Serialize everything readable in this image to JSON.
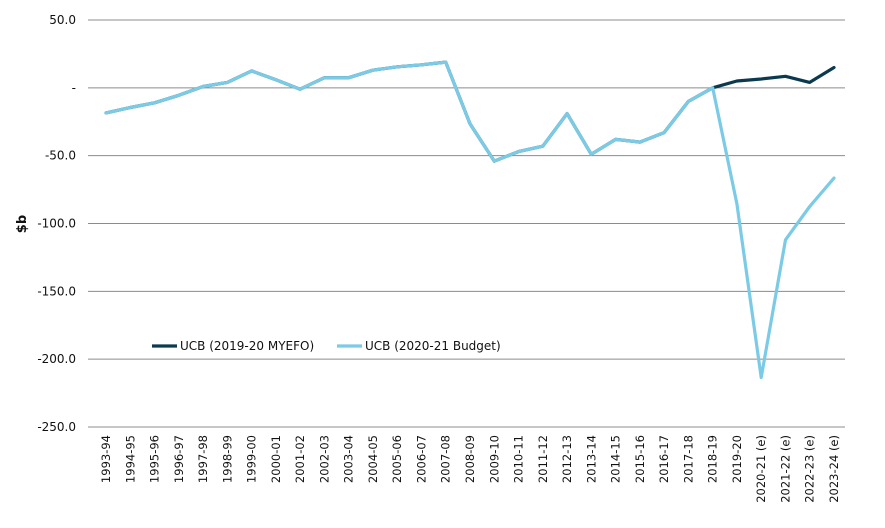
{
  "chart_data": {
    "type": "line",
    "ylabel": "$b",
    "ylim": [
      -250,
      50
    ],
    "ytick_values": [
      50,
      0,
      -50,
      -100,
      -150,
      -200,
      -250
    ],
    "ytick_labels": [
      "50.0",
      "-",
      "-50.0",
      "-100.0",
      "-150.0",
      "-200.0",
      "-250.0"
    ],
    "grid": true,
    "legend_position": "lower-left",
    "categories": [
      "1993-94",
      "1994-95",
      "1995-96",
      "1996-97",
      "1997-98",
      "1998-99",
      "1999-00",
      "2000-01",
      "2001-02",
      "2002-03",
      "2003-04",
      "2004-05",
      "2005-06",
      "2006-07",
      "2007-08",
      "2008-09",
      "2009-10",
      "2010-11",
      "2011-12",
      "2012-13",
      "2013-14",
      "2014-15",
      "2015-16",
      "2016-17",
      "2017-18",
      "2018-19",
      "2019-20",
      "2020-21 (e)",
      "2021-22 (e)",
      "2022-23 (e)",
      "2023-24 (e)"
    ],
    "series": [
      {
        "name": "UCB (2019-20 MYEFO)",
        "color": "#0b3a4f",
        "values": [
          -18.5,
          -14.5,
          -11,
          -5.5,
          1,
          4,
          12.5,
          6,
          -1,
          7.5,
          7.5,
          13,
          15.5,
          17,
          19,
          -26.5,
          -54,
          -47,
          -43,
          -19,
          -49,
          -38,
          -40,
          -33,
          -10,
          0,
          5,
          6.5,
          8.5,
          4,
          15
        ]
      },
      {
        "name": "UCB (2020-21 Budget)",
        "color": "#7ccbe6",
        "values": [
          -18.5,
          -14.5,
          -11,
          -5.5,
          1,
          4,
          12.5,
          6,
          -1,
          7.5,
          7.5,
          13,
          15.5,
          17,
          19,
          -26.5,
          -54,
          -47,
          -43,
          -19,
          -49,
          -38,
          -40,
          -33,
          -10,
          0,
          -85.5,
          -213.5,
          -112,
          -87.5,
          -66.5
        ]
      }
    ]
  }
}
